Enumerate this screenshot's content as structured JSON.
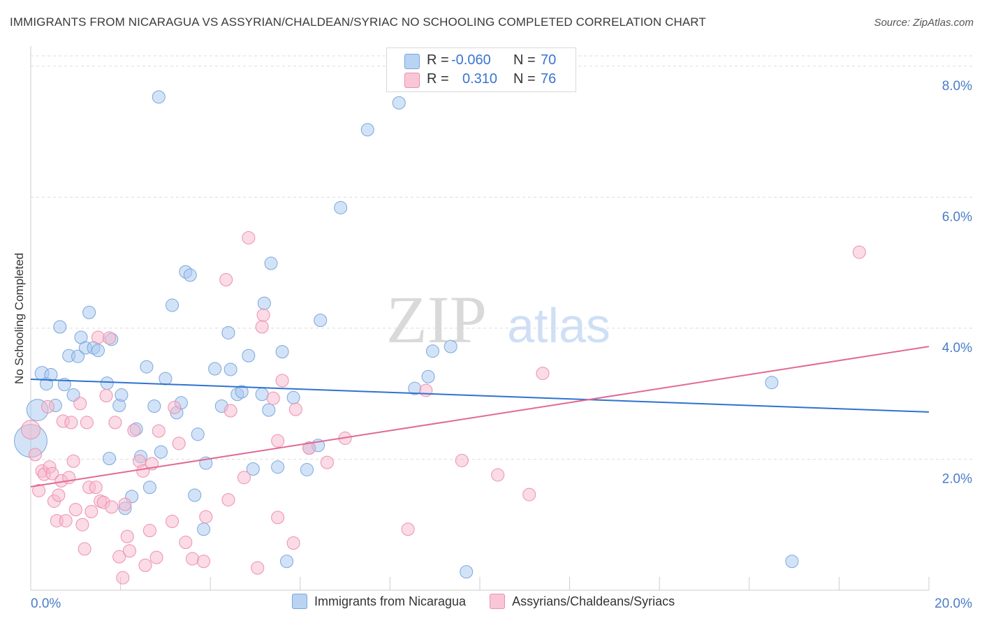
{
  "title": "IMMIGRANTS FROM NICARAGUA VS ASSYRIAN/CHALDEAN/SYRIAC NO SCHOOLING COMPLETED CORRELATION CHART",
  "source": "Source: ZipAtlas.com",
  "watermark": {
    "zip": "ZIP",
    "atlas": "atlas"
  },
  "colors": {
    "blue_fill": "#a8c8f0",
    "blue_stroke": "#7aa6dc",
    "blue_line": "#2f72d0",
    "pink_fill": "#f7b8cc",
    "pink_stroke": "#ec90ae",
    "pink_line": "#e06a94",
    "axis_text": "#4a7cc9",
    "grid": "#dcdcdc"
  },
  "legend_top": {
    "rows": [
      {
        "r_label": "R =",
        "r_value": "-0.060",
        "n_label": "N =",
        "n_value": "70"
      },
      {
        "r_label": "R =",
        "r_value": "0.310",
        "n_label": "N =",
        "n_value": "76"
      }
    ]
  },
  "chart_data": {
    "type": "scatter",
    "title": "IMMIGRANTS FROM NICARAGUA VS ASSYRIAN/CHALDEAN/SYRIAC NO SCHOOLING COMPLETED CORRELATION CHART",
    "xlabel": "",
    "ylabel": "No Schooling Completed",
    "xlim": [
      0,
      20
    ],
    "ylim": [
      0,
      8.2
    ],
    "x_tick_labels": [
      "0.0%",
      "20.0%"
    ],
    "y_ticks": [
      2,
      4,
      6,
      8
    ],
    "y_tick_labels": [
      "2.0%",
      "4.0%",
      "6.0%",
      "8.0%"
    ],
    "grid": true,
    "legend_position": "bottom",
    "series": [
      {
        "name": "Immigrants from Nicaragua",
        "color": "blue",
        "trend": {
          "x": [
            0,
            20
          ],
          "y": [
            3.22,
            2.72
          ]
        },
        "points": [
          [
            0.15,
            2.75,
            1.7
          ],
          [
            0.0,
            2.28,
            2.6
          ],
          [
            0.25,
            3.31,
            1.1
          ],
          [
            0.35,
            3.15,
            1.0
          ],
          [
            0.45,
            3.29,
            1.0
          ],
          [
            0.55,
            2.82,
            1.0
          ],
          [
            0.65,
            4.02,
            1.0
          ],
          [
            0.75,
            3.14,
            1.0
          ],
          [
            0.85,
            3.58,
            1.0
          ],
          [
            0.95,
            2.98,
            1.0
          ],
          [
            1.05,
            3.57,
            1.0
          ],
          [
            1.12,
            3.86,
            1.0
          ],
          [
            1.22,
            3.7,
            1.0
          ],
          [
            1.3,
            4.24,
            1.0
          ],
          [
            1.4,
            3.7,
            1.0
          ],
          [
            1.5,
            3.66,
            1.0
          ],
          [
            1.7,
            3.16,
            1.0
          ],
          [
            1.8,
            3.83,
            1.0
          ],
          [
            1.75,
            2.01,
            1.0
          ],
          [
            1.97,
            2.82,
            1.0
          ],
          [
            2.02,
            2.98,
            1.0
          ],
          [
            2.1,
            1.25,
            1.0
          ],
          [
            2.25,
            1.43,
            1.0
          ],
          [
            2.35,
            2.46,
            1.0
          ],
          [
            2.45,
            2.04,
            1.0
          ],
          [
            2.58,
            3.41,
            1.0
          ],
          [
            2.65,
            1.57,
            1.0
          ],
          [
            2.75,
            2.81,
            1.0
          ],
          [
            2.9,
            2.11,
            1.0
          ],
          [
            3.0,
            3.23,
            1.0
          ],
          [
            3.15,
            4.35,
            1.0
          ],
          [
            3.25,
            2.71,
            1.0
          ],
          [
            3.35,
            2.86,
            1.0
          ],
          [
            3.45,
            4.86,
            1.0
          ],
          [
            3.55,
            4.81,
            1.0
          ],
          [
            3.65,
            1.45,
            1.0
          ],
          [
            3.72,
            2.38,
            1.0
          ],
          [
            3.85,
            0.93,
            1.0
          ],
          [
            3.9,
            1.94,
            1.0
          ],
          [
            4.1,
            3.38,
            1.0
          ],
          [
            4.25,
            2.81,
            1.0
          ],
          [
            4.4,
            3.93,
            1.0
          ],
          [
            4.45,
            3.37,
            1.0
          ],
          [
            4.6,
            2.99,
            1.0
          ],
          [
            4.7,
            3.03,
            1.0
          ],
          [
            4.85,
            3.58,
            1.0
          ],
          [
            4.95,
            1.85,
            1.0
          ],
          [
            5.15,
            2.99,
            1.0
          ],
          [
            5.2,
            4.38,
            1.0
          ],
          [
            5.3,
            2.75,
            1.0
          ],
          [
            5.35,
            4.99,
            1.0
          ],
          [
            5.5,
            1.88,
            1.0
          ],
          [
            5.6,
            3.64,
            1.0
          ],
          [
            5.7,
            0.44,
            1.0
          ],
          [
            5.85,
            2.94,
            1.0
          ],
          [
            6.15,
            1.84,
            1.0
          ],
          [
            6.2,
            2.17,
            1.0
          ],
          [
            6.4,
            2.21,
            1.0
          ],
          [
            6.45,
            4.12,
            1.0
          ],
          [
            6.9,
            5.84,
            1.0
          ],
          [
            7.5,
            7.03,
            1.0
          ],
          [
            8.2,
            7.44,
            1.0
          ],
          [
            8.55,
            3.08,
            1.0
          ],
          [
            8.85,
            3.26,
            1.0
          ],
          [
            8.95,
            3.65,
            1.0
          ],
          [
            9.35,
            3.72,
            1.0
          ],
          [
            9.7,
            0.28,
            1.0
          ],
          [
            16.5,
            3.17,
            1.0
          ],
          [
            16.95,
            0.44,
            1.0
          ],
          [
            2.85,
            7.53,
            1.0
          ]
        ]
      },
      {
        "name": "Assyrians/Chaldeans/Syriacs",
        "color": "pink",
        "trend": {
          "x": [
            0,
            20
          ],
          "y": [
            1.58,
            3.72
          ]
        },
        "points": [
          [
            0.0,
            2.45,
            1.5
          ],
          [
            0.1,
            2.07,
            1.0
          ],
          [
            0.18,
            1.52,
            1.0
          ],
          [
            0.25,
            1.82,
            1.0
          ],
          [
            0.3,
            1.77,
            1.0
          ],
          [
            0.38,
            2.8,
            1.0
          ],
          [
            0.42,
            1.88,
            1.0
          ],
          [
            0.48,
            1.78,
            1.0
          ],
          [
            0.52,
            1.36,
            1.0
          ],
          [
            0.58,
            1.06,
            1.0
          ],
          [
            0.62,
            1.45,
            1.0
          ],
          [
            0.68,
            1.67,
            1.0
          ],
          [
            0.72,
            2.58,
            1.0
          ],
          [
            0.78,
            1.06,
            1.0
          ],
          [
            0.85,
            1.72,
            1.0
          ],
          [
            0.9,
            2.56,
            1.0
          ],
          [
            0.95,
            1.97,
            1.0
          ],
          [
            1.0,
            1.23,
            1.0
          ],
          [
            1.1,
            2.85,
            1.0
          ],
          [
            1.15,
            1.0,
            1.0
          ],
          [
            1.2,
            0.63,
            1.0
          ],
          [
            1.25,
            2.56,
            1.0
          ],
          [
            1.3,
            1.57,
            1.0
          ],
          [
            1.35,
            1.2,
            1.0
          ],
          [
            1.45,
            1.57,
            1.0
          ],
          [
            1.5,
            3.86,
            1.0
          ],
          [
            1.55,
            1.36,
            1.0
          ],
          [
            1.62,
            1.34,
            1.0
          ],
          [
            1.68,
            2.97,
            1.0
          ],
          [
            1.75,
            3.85,
            1.0
          ],
          [
            1.8,
            1.27,
            1.0
          ],
          [
            1.88,
            2.56,
            1.0
          ],
          [
            1.97,
            0.51,
            1.0
          ],
          [
            2.05,
            0.19,
            1.0
          ],
          [
            2.1,
            1.31,
            1.0
          ],
          [
            2.15,
            0.82,
            1.0
          ],
          [
            2.2,
            0.6,
            1.0
          ],
          [
            2.3,
            2.44,
            1.0
          ],
          [
            2.42,
            1.97,
            1.0
          ],
          [
            2.5,
            1.82,
            1.0
          ],
          [
            2.55,
            0.38,
            1.0
          ],
          [
            2.65,
            0.91,
            1.0
          ],
          [
            2.7,
            1.93,
            1.0
          ],
          [
            2.8,
            0.5,
            1.0
          ],
          [
            2.85,
            2.43,
            1.0
          ],
          [
            3.15,
            1.05,
            1.0
          ],
          [
            3.2,
            2.79,
            1.0
          ],
          [
            3.3,
            2.24,
            1.0
          ],
          [
            3.45,
            0.73,
            1.0
          ],
          [
            3.6,
            0.48,
            1.0
          ],
          [
            3.85,
            0.44,
            1.0
          ],
          [
            3.9,
            1.12,
            1.0
          ],
          [
            4.35,
            4.74,
            1.0
          ],
          [
            4.4,
            1.38,
            1.0
          ],
          [
            4.45,
            2.74,
            1.0
          ],
          [
            4.75,
            1.72,
            1.0
          ],
          [
            4.85,
            5.38,
            1.0
          ],
          [
            5.05,
            0.34,
            1.0
          ],
          [
            5.15,
            4.02,
            1.0
          ],
          [
            5.18,
            4.2,
            1.0
          ],
          [
            5.4,
            2.93,
            1.0
          ],
          [
            5.5,
            1.11,
            1.0
          ],
          [
            5.6,
            3.2,
            1.0
          ],
          [
            5.85,
            0.72,
            1.0
          ],
          [
            5.9,
            2.76,
            1.0
          ],
          [
            5.5,
            2.28,
            1.0
          ],
          [
            6.2,
            2.17,
            1.0
          ],
          [
            6.6,
            1.95,
            1.0
          ],
          [
            7.0,
            2.32,
            1.0
          ],
          [
            8.4,
            0.93,
            1.0
          ],
          [
            8.8,
            3.05,
            1.0
          ],
          [
            9.6,
            1.98,
            1.0
          ],
          [
            10.4,
            1.76,
            1.0
          ],
          [
            11.1,
            1.46,
            1.0
          ],
          [
            11.4,
            3.31,
            1.0
          ],
          [
            18.45,
            5.16,
            1.0
          ]
        ]
      }
    ]
  },
  "legend_bottom": [
    {
      "label": "Immigrants from Nicaragua",
      "color": "blue"
    },
    {
      "label": "Assyrians/Chaldeans/Syriacs",
      "color": "pink"
    }
  ]
}
